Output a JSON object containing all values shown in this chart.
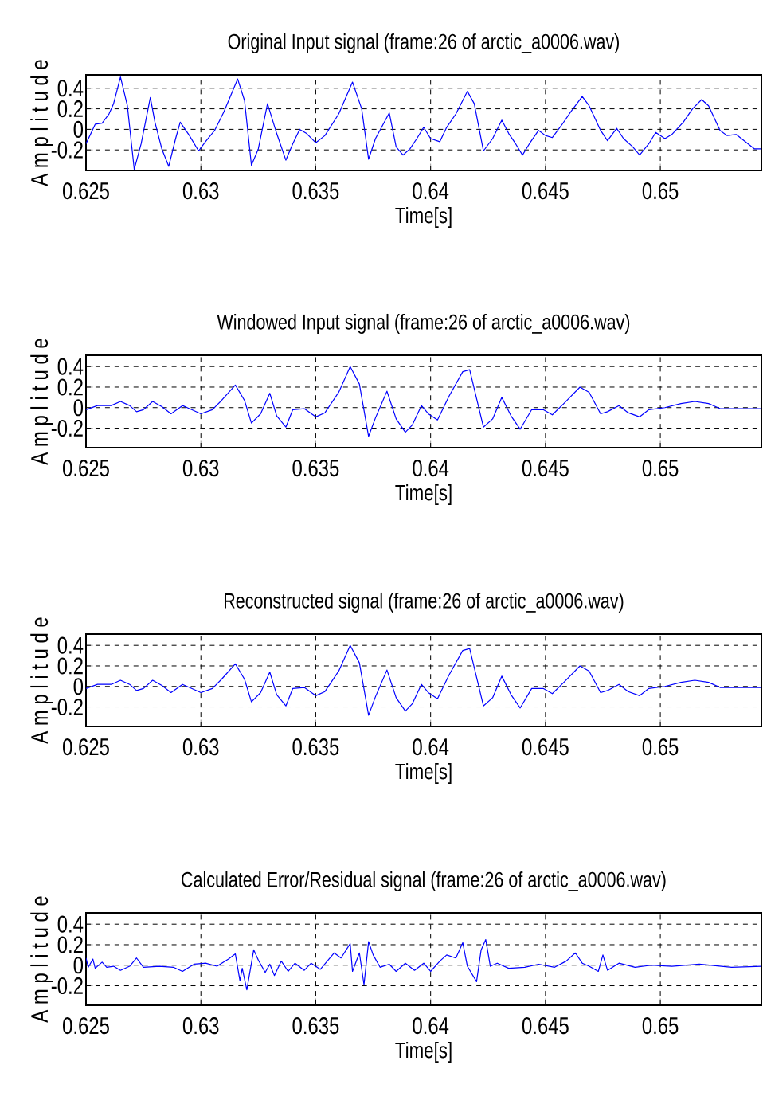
{
  "chart_data": [
    {
      "type": "line",
      "title": "Original Input signal (frame:26 of arctic_a0006.wav)",
      "xlabel": "Time[s]",
      "ylabel": "A m p l i t u d e",
      "xlim": [
        0.625,
        0.6544
      ],
      "ylim": [
        -0.4,
        0.53
      ],
      "xticks": [
        0.625,
        0.63,
        0.635,
        0.64,
        0.645,
        0.65
      ],
      "yticks": [
        0.4,
        0.2,
        0,
        -0.2
      ],
      "grid": true,
      "x": [
        0.625,
        0.6254,
        0.6257,
        0.626,
        0.6262,
        0.6265,
        0.6268,
        0.6271,
        0.6274,
        0.6278,
        0.628,
        0.6283,
        0.6286,
        0.6289,
        0.6291,
        0.6295,
        0.6299,
        0.6302,
        0.6306,
        0.631,
        0.6316,
        0.6319,
        0.6322,
        0.6325,
        0.6329,
        0.6333,
        0.6337,
        0.634,
        0.6343,
        0.6346,
        0.635,
        0.6354,
        0.636,
        0.6366,
        0.637,
        0.6373,
        0.6376,
        0.6382,
        0.6385,
        0.6388,
        0.6391,
        0.6394,
        0.6397,
        0.64,
        0.6404,
        0.6407,
        0.6411,
        0.6416,
        0.6419,
        0.6423,
        0.6427,
        0.6431,
        0.6434,
        0.6437,
        0.644,
        0.6443,
        0.6447,
        0.645,
        0.6453,
        0.6457,
        0.6461,
        0.6466,
        0.6469,
        0.6474,
        0.6477,
        0.6481,
        0.6484,
        0.6488,
        0.6491,
        0.6495,
        0.6498,
        0.6502,
        0.6505,
        0.651,
        0.6514,
        0.6518,
        0.6521,
        0.6526,
        0.6529,
        0.6533,
        0.6537,
        0.6541,
        0.6544
      ],
      "series": [
        {
          "color": "#0000ff",
          "values": [
            -0.14,
            0.05,
            0.06,
            0.15,
            0.25,
            0.51,
            0.23,
            -0.39,
            -0.14,
            0.31,
            0.07,
            -0.19,
            -0.36,
            -0.09,
            0.07,
            -0.06,
            -0.21,
            -0.12,
            -0.01,
            0.17,
            0.49,
            0.28,
            -0.35,
            -0.19,
            0.25,
            -0.04,
            -0.3,
            -0.14,
            0.0,
            -0.04,
            -0.13,
            -0.06,
            0.15,
            0.46,
            0.2,
            -0.29,
            -0.09,
            0.16,
            -0.17,
            -0.25,
            -0.19,
            -0.09,
            0.02,
            -0.09,
            -0.12,
            0.02,
            0.15,
            0.37,
            0.25,
            -0.21,
            -0.09,
            0.09,
            -0.04,
            -0.14,
            -0.25,
            -0.14,
            -0.01,
            -0.06,
            -0.08,
            0.04,
            0.17,
            0.32,
            0.23,
            -0.01,
            -0.11,
            0.01,
            -0.09,
            -0.17,
            -0.25,
            -0.14,
            -0.03,
            -0.09,
            -0.05,
            0.07,
            0.2,
            0.29,
            0.23,
            -0.01,
            -0.06,
            -0.05,
            -0.12,
            -0.19,
            -0.19
          ]
        }
      ]
    },
    {
      "type": "line",
      "title": "Windowed Input signal (frame:26 of arctic_a0006.wav)",
      "xlabel": "Time[s]",
      "ylabel": "A m p l i t u d e",
      "xlim": [
        0.625,
        0.6544
      ],
      "ylim": [
        -0.39,
        0.51
      ],
      "xticks": [
        0.625,
        0.63,
        0.635,
        0.64,
        0.645,
        0.65
      ],
      "yticks": [
        0.4,
        0.2,
        0,
        -0.2
      ],
      "grid": true,
      "x": [
        0.625,
        0.6255,
        0.6261,
        0.6265,
        0.6269,
        0.6272,
        0.6275,
        0.6279,
        0.6283,
        0.6287,
        0.6292,
        0.6295,
        0.63,
        0.6305,
        0.6309,
        0.6315,
        0.6319,
        0.6322,
        0.6326,
        0.633,
        0.6333,
        0.6337,
        0.634,
        0.6345,
        0.635,
        0.6354,
        0.636,
        0.6365,
        0.6369,
        0.6373,
        0.6376,
        0.6381,
        0.6385,
        0.6389,
        0.6392,
        0.6396,
        0.6399,
        0.6403,
        0.6408,
        0.6414,
        0.6417,
        0.6423,
        0.6427,
        0.6431,
        0.6435,
        0.6439,
        0.6444,
        0.6449,
        0.6453,
        0.6458,
        0.6465,
        0.6469,
        0.6474,
        0.6477,
        0.6482,
        0.6486,
        0.6491,
        0.6495,
        0.6502,
        0.6509,
        0.6515,
        0.6521,
        0.6526,
        0.6534,
        0.6544
      ],
      "series": [
        {
          "color": "#0000ff",
          "values": [
            -0.02,
            0.02,
            0.02,
            0.06,
            0.02,
            -0.04,
            -0.02,
            0.06,
            0.01,
            -0.06,
            0.02,
            -0.01,
            -0.06,
            -0.02,
            0.07,
            0.22,
            0.07,
            -0.15,
            -0.06,
            0.14,
            -0.08,
            -0.19,
            -0.02,
            -0.01,
            -0.09,
            -0.05,
            0.15,
            0.4,
            0.23,
            -0.28,
            -0.1,
            0.16,
            -0.11,
            -0.24,
            -0.17,
            0.02,
            -0.06,
            -0.12,
            0.11,
            0.35,
            0.37,
            -0.19,
            -0.11,
            0.1,
            -0.08,
            -0.21,
            -0.02,
            -0.02,
            -0.07,
            0.04,
            0.2,
            0.15,
            -0.06,
            -0.04,
            0.02,
            -0.05,
            -0.09,
            -0.02,
            0.0,
            0.04,
            0.06,
            0.04,
            -0.01,
            -0.01,
            -0.01
          ]
        }
      ]
    },
    {
      "type": "line",
      "title": "Reconstructed signal (frame:26 of arctic_a0006.wav)",
      "xlabel": "Time[s]",
      "ylabel": "A m p l i t u d e",
      "xlim": [
        0.625,
        0.6544
      ],
      "ylim": [
        -0.39,
        0.51
      ],
      "xticks": [
        0.625,
        0.63,
        0.635,
        0.64,
        0.645,
        0.65
      ],
      "yticks": [
        0.4,
        0.2,
        0,
        -0.2
      ],
      "grid": true,
      "x": [
        0.625,
        0.6255,
        0.6261,
        0.6265,
        0.6269,
        0.6272,
        0.6275,
        0.6279,
        0.6283,
        0.6287,
        0.6292,
        0.6295,
        0.63,
        0.6305,
        0.6309,
        0.6315,
        0.6319,
        0.6322,
        0.6326,
        0.633,
        0.6333,
        0.6337,
        0.634,
        0.6345,
        0.635,
        0.6354,
        0.636,
        0.6365,
        0.6369,
        0.6373,
        0.6376,
        0.6381,
        0.6385,
        0.6389,
        0.6392,
        0.6396,
        0.6399,
        0.6403,
        0.6408,
        0.6414,
        0.6417,
        0.6423,
        0.6427,
        0.6431,
        0.6435,
        0.6439,
        0.6444,
        0.6449,
        0.6453,
        0.6458,
        0.6465,
        0.6469,
        0.6474,
        0.6477,
        0.6482,
        0.6486,
        0.6491,
        0.6495,
        0.6502,
        0.6509,
        0.6515,
        0.6521,
        0.6526,
        0.6534,
        0.6544
      ],
      "series": [
        {
          "color": "#0000ff",
          "values": [
            -0.02,
            0.02,
            0.02,
            0.06,
            0.02,
            -0.04,
            -0.02,
            0.06,
            0.01,
            -0.06,
            0.02,
            -0.01,
            -0.06,
            -0.02,
            0.07,
            0.22,
            0.07,
            -0.15,
            -0.06,
            0.14,
            -0.08,
            -0.19,
            -0.02,
            -0.01,
            -0.09,
            -0.05,
            0.15,
            0.4,
            0.23,
            -0.28,
            -0.1,
            0.16,
            -0.11,
            -0.24,
            -0.17,
            0.02,
            -0.06,
            -0.12,
            0.11,
            0.35,
            0.37,
            -0.19,
            -0.11,
            0.1,
            -0.08,
            -0.21,
            -0.02,
            -0.02,
            -0.07,
            0.04,
            0.2,
            0.15,
            -0.06,
            -0.04,
            0.02,
            -0.05,
            -0.09,
            -0.02,
            0.0,
            0.04,
            0.06,
            0.04,
            -0.01,
            -0.01,
            -0.01
          ]
        }
      ]
    },
    {
      "type": "line",
      "title": "Calculated Error/Residual signal (frame:26 of arctic_a0006.wav)",
      "xlabel": "Time[s]",
      "ylabel": "A m p l i t u d e",
      "xlim": [
        0.625,
        0.6544
      ],
      "ylim": [
        -0.39,
        0.51
      ],
      "xticks": [
        0.625,
        0.63,
        0.635,
        0.64,
        0.645,
        0.65
      ],
      "yticks": [
        0.4,
        0.2,
        0,
        -0.2
      ],
      "grid": true,
      "x": [
        0.625,
        0.6251,
        0.6253,
        0.6254,
        0.6257,
        0.6259,
        0.6262,
        0.6265,
        0.6269,
        0.6272,
        0.6275,
        0.6282,
        0.6288,
        0.6292,
        0.6297,
        0.6302,
        0.6307,
        0.6312,
        0.6315,
        0.6317,
        0.6318,
        0.632,
        0.6323,
        0.6325,
        0.6328,
        0.633,
        0.6332,
        0.6335,
        0.6338,
        0.6341,
        0.6345,
        0.6348,
        0.6352,
        0.6355,
        0.6358,
        0.6361,
        0.6365,
        0.6366,
        0.6369,
        0.6371,
        0.6373,
        0.6375,
        0.6378,
        0.6382,
        0.6385,
        0.6389,
        0.6393,
        0.6397,
        0.64,
        0.6404,
        0.6407,
        0.6411,
        0.6414,
        0.6416,
        0.642,
        0.6422,
        0.6424,
        0.6426,
        0.6429,
        0.6434,
        0.6441,
        0.6447,
        0.6454,
        0.6459,
        0.6463,
        0.6466,
        0.6469,
        0.6473,
        0.6475,
        0.6477,
        0.6482,
        0.6489,
        0.6496,
        0.6505,
        0.6517,
        0.6531,
        0.6544
      ],
      "series": [
        {
          "color": "#0000ff",
          "values": [
            0.07,
            -0.02,
            0.06,
            -0.03,
            0.03,
            -0.02,
            -0.01,
            -0.05,
            -0.01,
            0.07,
            -0.02,
            -0.01,
            -0.02,
            -0.06,
            0.01,
            0.02,
            -0.01,
            0.06,
            0.11,
            -0.15,
            -0.03,
            -0.24,
            0.15,
            0.05,
            -0.07,
            0.01,
            -0.1,
            0.04,
            -0.06,
            0.02,
            -0.05,
            0.02,
            -0.04,
            0.04,
            0.12,
            0.07,
            0.21,
            -0.06,
            0.12,
            -0.19,
            0.23,
            0.1,
            -0.02,
            0.01,
            -0.06,
            0.02,
            -0.05,
            0.02,
            -0.06,
            0.04,
            0.1,
            0.07,
            0.22,
            -0.01,
            -0.16,
            0.15,
            0.25,
            -0.01,
            0.02,
            -0.03,
            -0.02,
            0.01,
            -0.02,
            0.04,
            0.12,
            0.02,
            -0.01,
            -0.06,
            0.1,
            -0.05,
            0.02,
            -0.02,
            0.0,
            -0.01,
            0.01,
            -0.02,
            -0.01
          ]
        }
      ]
    }
  ]
}
